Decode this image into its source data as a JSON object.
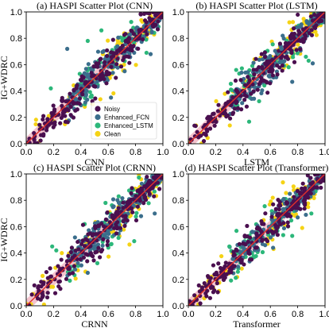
{
  "chart_data": [
    {
      "type": "scatter",
      "title": "(a) HASPI Scatter Plot (CNN)",
      "xlabel": "CNN",
      "ylabel": "IG+WDRC",
      "xlim": [
        0,
        1
      ],
      "ylim": [
        0,
        1
      ],
      "xticks": [
        "0.0",
        "0.2",
        "0.4",
        "0.6",
        "0.8",
        "1.0"
      ],
      "yticks": [
        "0.0",
        "0.2",
        "0.4",
        "0.6",
        "0.8",
        "1.0"
      ],
      "legend": true,
      "legend_position": "lower-center",
      "spread": 0.07,
      "outliers": [
        [
          0.45,
          0.78
        ],
        [
          0.3,
          0.72
        ],
        [
          0.55,
          0.86
        ],
        [
          0.62,
          0.35
        ],
        [
          0.88,
          0.69
        ],
        [
          0.91,
          0.68
        ],
        [
          0.18,
          0.42
        ],
        [
          0.72,
          0.55
        ]
      ]
    },
    {
      "type": "scatter",
      "title": "(b) HASPI Scatter Plot (LSTM)",
      "xlabel": "LSTM",
      "ylabel": "",
      "xlim": [
        0,
        1
      ],
      "ylim": [
        0,
        1
      ],
      "xticks": [
        "0.0",
        "0.2",
        "0.4",
        "0.6",
        "0.8",
        "1.0"
      ],
      "yticks": [
        "0.0",
        "0.2",
        "0.4",
        "0.6",
        "0.8",
        "1.0"
      ],
      "legend": false,
      "spread": 0.06,
      "outliers": [
        [
          0.88,
          0.63
        ],
        [
          0.76,
          0.47
        ],
        [
          0.86,
          0.66
        ],
        [
          0.68,
          0.72
        ],
        [
          0.35,
          0.56
        ],
        [
          0.91,
          0.61
        ]
      ]
    },
    {
      "type": "scatter",
      "title": "(c) HASPI Scatter Plot (CRNN)",
      "xlabel": "CRNN",
      "ylabel": "IG+WDRC",
      "xlim": [
        0,
        1
      ],
      "ylim": [
        0,
        1
      ],
      "xticks": [
        "0.0",
        "0.2",
        "0.4",
        "0.6",
        "0.8",
        "1.0"
      ],
      "yticks": [
        "0.0",
        "0.2",
        "0.4",
        "0.6",
        "0.8",
        "1.0"
      ],
      "legend": false,
      "spread": 0.065,
      "outliers": [
        [
          0.19,
          0.45
        ],
        [
          0.45,
          0.25
        ],
        [
          0.79,
          0.49
        ],
        [
          0.84,
          0.68
        ],
        [
          0.58,
          0.78
        ],
        [
          0.94,
          0.7
        ],
        [
          0.22,
          0.42
        ]
      ]
    },
    {
      "type": "scatter",
      "title": "(d) HASPI Scatter Plot (Transformer)",
      "xlabel": "Transformer",
      "ylabel": "",
      "xlim": [
        0,
        1
      ],
      "ylim": [
        0,
        1
      ],
      "xticks": [
        "0.0",
        "0.2",
        "0.4",
        "0.6",
        "0.8",
        "1.0"
      ],
      "yticks": [
        "0.0",
        "0.2",
        "0.4",
        "0.6",
        "0.8",
        "1.0"
      ],
      "legend": false,
      "spread": 0.06,
      "outliers": [
        [
          0.76,
          0.53
        ],
        [
          0.8,
          0.67
        ],
        [
          0.9,
          0.7
        ],
        [
          0.86,
          0.69
        ],
        [
          0.3,
          0.45
        ],
        [
          0.62,
          0.44
        ]
      ]
    }
  ],
  "series": [
    {
      "name": "Noisy",
      "color": "#4a0f4f"
    },
    {
      "name": "Enhanced_FCN",
      "color": "#3b6e8c"
    },
    {
      "name": "Enhanced_LSTM",
      "color": "#2cb77a"
    },
    {
      "name": "Clean",
      "color": "#f5d315"
    }
  ],
  "reference_line_color": "#e0302a",
  "band_color": "#f2b9c4"
}
